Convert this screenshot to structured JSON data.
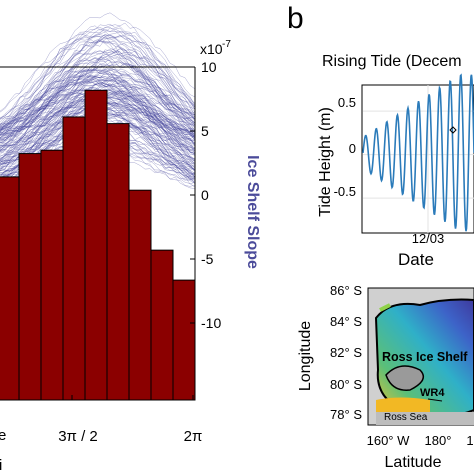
{
  "panel_a": {
    "x_ticks": [
      "3π / 2",
      "2π"
    ],
    "x_label_fragment": "e",
    "bottom_text_fragment": "i",
    "y_right_exponent": "x10",
    "y_right_exponent_power": "-7",
    "y_right_label": "Ice Shelf Slope",
    "y_right_ticks": [
      "10",
      "5",
      "0",
      "-5",
      "-10"
    ],
    "colors": {
      "bars": "#8b0000",
      "curves": "#3c3c96",
      "label": "#4b4b9a"
    }
  },
  "panel_b": {
    "letter": "b",
    "title": "Rising Tide (Decem",
    "tide_ylabel": "Tide Height (m)",
    "tide_yticks": [
      "0.5",
      "0",
      "-0.5"
    ],
    "tide_xtick": "12/03",
    "tide_xlabel": "Date",
    "map_ylabel": "Longitude",
    "map_xlabel": "Latitude",
    "map_yticks": [
      "86° S",
      "84° S",
      "82° S",
      "80° S",
      "78° S"
    ],
    "map_xticks": [
      "160° W",
      "180°",
      "1"
    ],
    "map_labels": {
      "shelf": "Ross Ice Shelf",
      "station": "WR4",
      "sea": "Ross Sea"
    },
    "tide_line_color": "#2b7bba"
  },
  "chart_data": [
    {
      "type": "bar",
      "values": [
        0.67,
        0.74,
        0.75,
        0.85,
        0.93,
        0.83,
        0.63,
        0.45,
        0.36
      ],
      "ylabel": "Ice Shelf Slope",
      "xticks_visible": [
        "3π / 2",
        "2π"
      ],
      "y_right_range": [
        -15,
        10
      ],
      "y_right_exponent": -7,
      "overlay": "many ice shelf slope curves"
    },
    {
      "type": "line",
      "title": "Rising Tide (Decem",
      "ylabel": "Tide Height (m)",
      "xlabel": "Date",
      "ylim": [
        -0.9,
        0.8
      ],
      "yticks": [
        -0.5,
        0,
        0.5
      ],
      "xtick": "12/03"
    }
  ]
}
